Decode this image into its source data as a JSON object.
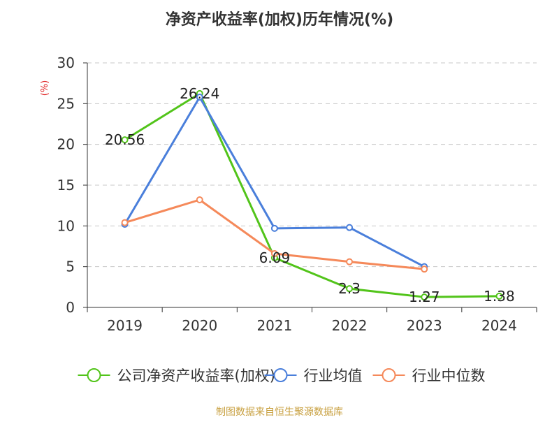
{
  "chart_data": {
    "type": "line",
    "title": "净资产收益率(加权)历年情况(%)",
    "ylabel": "(%)",
    "xlabel": "",
    "categories": [
      "2019",
      "2020",
      "2021",
      "2022",
      "2023",
      "2024"
    ],
    "ylim": [
      0,
      30
    ],
    "yticks": [
      0,
      5,
      10,
      15,
      20,
      25,
      30
    ],
    "grid": true,
    "legend_position": "bottom",
    "series": [
      {
        "name": "公司净资产收益率(加权)",
        "color": "#52c41a",
        "values": [
          20.56,
          26.24,
          6.09,
          2.3,
          1.27,
          1.38
        ],
        "labels": [
          "20.56",
          "26.24",
          "6.09",
          "2.3",
          "1.27",
          "1.38"
        ]
      },
      {
        "name": "行业均值",
        "color": "#4a7fdb",
        "values": [
          10.2,
          25.8,
          9.7,
          9.8,
          5.0,
          null
        ]
      },
      {
        "name": "行业中位数",
        "color": "#f5895a",
        "values": [
          10.4,
          13.2,
          6.6,
          5.6,
          4.7,
          null
        ]
      }
    ],
    "source": "制图数据来自恒生聚源数据库"
  }
}
